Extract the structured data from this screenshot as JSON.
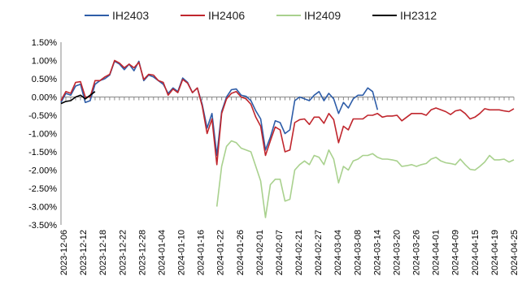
{
  "chart_data": {
    "type": "line",
    "title": "",
    "xlabel": "",
    "ylabel": "",
    "ylim": [
      -3.5,
      1.5
    ],
    "y_ticks": [
      1.5,
      1.0,
      0.5,
      0.0,
      -0.5,
      -1.0,
      -1.5,
      -2.0,
      -2.5,
      -3.0,
      -3.5
    ],
    "y_tick_labels": [
      "1.50%",
      "1.00%",
      "0.50%",
      "0.00%",
      "-0.50%",
      "-1.00%",
      "-1.50%",
      "-2.00%",
      "-2.50%",
      "-3.00%",
      "-3.50%"
    ],
    "x_tick_labels": [
      "2023-12-06",
      "2023-12-12",
      "2023-12-18",
      "2023-12-22",
      "2023-12-28",
      "2024-01-04",
      "2024-01-10",
      "2024-01-16",
      "2024-01-22",
      "2024-01-26",
      "2024-02-01",
      "2024-02-07",
      "2024-02-21",
      "2024-02-27",
      "2024-03-04",
      "2024-03-08",
      "2024-03-14",
      "2024-03-20",
      "2024-03-26",
      "2024-04-01",
      "2024-04-09",
      "2024-04-15",
      "2024-04-19",
      "2024-04-25"
    ],
    "legend_position": "top",
    "grid": false,
    "unit": "%",
    "series": [
      {
        "name": "IH2403",
        "color": "#2e5da8",
        "x": [
          "2023-12-06",
          "2023-12-07",
          "2023-12-08",
          "2023-12-11",
          "2023-12-12",
          "2023-12-13",
          "2023-12-14",
          "2023-12-15",
          "2023-12-18",
          "2023-12-19",
          "2023-12-20",
          "2023-12-21",
          "2023-12-22",
          "2023-12-25",
          "2023-12-26",
          "2023-12-27",
          "2023-12-28",
          "2023-12-29",
          "2024-01-02",
          "2024-01-03",
          "2024-01-04",
          "2024-01-05",
          "2024-01-08",
          "2024-01-09",
          "2024-01-10",
          "2024-01-11",
          "2024-01-12",
          "2024-01-15",
          "2024-01-16",
          "2024-01-17",
          "2024-01-18",
          "2024-01-19",
          "2024-01-22",
          "2024-01-23",
          "2024-01-24",
          "2024-01-25",
          "2024-01-26",
          "2024-01-29",
          "2024-01-30",
          "2024-01-31",
          "2024-02-01",
          "2024-02-02",
          "2024-02-05",
          "2024-02-06",
          "2024-02-07",
          "2024-02-08",
          "2024-02-19",
          "2024-02-20",
          "2024-02-21",
          "2024-02-22",
          "2024-02-23",
          "2024-02-26",
          "2024-02-27",
          "2024-02-28",
          "2024-02-29",
          "2024-03-01",
          "2024-03-04",
          "2024-03-05",
          "2024-03-06",
          "2024-03-07",
          "2024-03-08",
          "2024-03-11",
          "2024-03-12",
          "2024-03-13",
          "2024-03-14",
          "2024-03-15"
        ],
        "y": [
          -0.15,
          0.1,
          0.05,
          0.3,
          0.35,
          -0.15,
          -0.1,
          0.35,
          0.45,
          0.5,
          0.6,
          0.98,
          0.9,
          0.75,
          0.9,
          0.72,
          0.98,
          0.45,
          0.6,
          0.55,
          0.45,
          0.35,
          0.1,
          0.25,
          0.15,
          0.52,
          0.4,
          0.12,
          0.25,
          -0.2,
          -0.85,
          -0.45,
          -1.6,
          -0.4,
          0.0,
          0.2,
          0.22,
          0.05,
          0.02,
          -0.1,
          -0.38,
          -0.6,
          -1.45,
          -1.1,
          -0.65,
          -0.7,
          -1.0,
          -0.9,
          -0.1,
          0.0,
          -0.05,
          -0.1,
          0.05,
          0.15,
          -0.1,
          0.1,
          -0.05,
          -0.45,
          -0.15,
          -0.3,
          -0.05,
          0.05,
          0.05,
          0.25,
          0.15,
          -0.35
        ]
      },
      {
        "name": "IH2406",
        "color": "#c0262d",
        "x": [
          "2023-12-06",
          "2023-12-07",
          "2023-12-08",
          "2023-12-11",
          "2023-12-12",
          "2023-12-13",
          "2023-12-14",
          "2023-12-15",
          "2023-12-18",
          "2023-12-19",
          "2023-12-20",
          "2023-12-21",
          "2023-12-22",
          "2023-12-25",
          "2023-12-26",
          "2023-12-27",
          "2023-12-28",
          "2023-12-29",
          "2024-01-02",
          "2024-01-03",
          "2024-01-04",
          "2024-01-05",
          "2024-01-08",
          "2024-01-09",
          "2024-01-10",
          "2024-01-11",
          "2024-01-12",
          "2024-01-15",
          "2024-01-16",
          "2024-01-17",
          "2024-01-18",
          "2024-01-19",
          "2024-01-22",
          "2024-01-23",
          "2024-01-24",
          "2024-01-25",
          "2024-01-26",
          "2024-01-29",
          "2024-01-30",
          "2024-01-31",
          "2024-02-01",
          "2024-02-02",
          "2024-02-05",
          "2024-02-06",
          "2024-02-07",
          "2024-02-08",
          "2024-02-19",
          "2024-02-20",
          "2024-02-21",
          "2024-02-22",
          "2024-02-23",
          "2024-02-26",
          "2024-02-27",
          "2024-02-28",
          "2024-02-29",
          "2024-03-01",
          "2024-03-04",
          "2024-03-05",
          "2024-03-06",
          "2024-03-07",
          "2024-03-08",
          "2024-03-11",
          "2024-03-12",
          "2024-03-13",
          "2024-03-14",
          "2024-03-15",
          "2024-03-18",
          "2024-03-19",
          "2024-03-20",
          "2024-03-21",
          "2024-03-22",
          "2024-03-25",
          "2024-03-26",
          "2024-03-27",
          "2024-03-28",
          "2024-03-29",
          "2024-04-01",
          "2024-04-02",
          "2024-04-03",
          "2024-04-08",
          "2024-04-09",
          "2024-04-10",
          "2024-04-11",
          "2024-04-12",
          "2024-04-15",
          "2024-04-16",
          "2024-04-17",
          "2024-04-18",
          "2024-04-19",
          "2024-04-22",
          "2024-04-23",
          "2024-04-24",
          "2024-04-25",
          "2024-04-26"
        ],
        "y": [
          -0.1,
          0.15,
          0.1,
          0.4,
          0.42,
          0.0,
          0.0,
          0.45,
          0.45,
          0.55,
          0.62,
          1.0,
          0.93,
          0.8,
          0.9,
          0.8,
          0.95,
          0.48,
          0.62,
          0.6,
          0.45,
          0.4,
          0.05,
          0.22,
          0.12,
          0.48,
          0.38,
          0.12,
          0.25,
          -0.25,
          -1.0,
          -0.6,
          -1.85,
          -0.45,
          -0.05,
          0.1,
          0.15,
          0.0,
          -0.05,
          -0.2,
          -0.55,
          -0.8,
          -1.6,
          -1.2,
          -0.82,
          -0.9,
          -1.5,
          -1.45,
          -0.7,
          -0.62,
          -0.6,
          -0.75,
          -0.55,
          -0.55,
          -0.72,
          -0.45,
          -0.62,
          -1.25,
          -0.8,
          -0.9,
          -0.6,
          -0.6,
          -0.6,
          -0.5,
          -0.5,
          -0.45,
          -0.55,
          -0.52,
          -0.52,
          -0.5,
          -0.65,
          -0.55,
          -0.45,
          -0.45,
          -0.45,
          -0.5,
          -0.35,
          -0.3,
          -0.35,
          -0.4,
          -0.48,
          -0.38,
          -0.35,
          -0.45,
          -0.6,
          -0.55,
          -0.45,
          -0.32,
          -0.35,
          -0.35,
          -0.35,
          -0.38,
          -0.4,
          -0.32
        ]
      },
      {
        "name": "IH2409",
        "color": "#a9d18e",
        "x": [
          "2024-01-22",
          "2024-01-23",
          "2024-01-24",
          "2024-01-25",
          "2024-01-26",
          "2024-01-29",
          "2024-01-30",
          "2024-01-31",
          "2024-02-01",
          "2024-02-02",
          "2024-02-05",
          "2024-02-06",
          "2024-02-07",
          "2024-02-08",
          "2024-02-19",
          "2024-02-20",
          "2024-02-21",
          "2024-02-22",
          "2024-02-23",
          "2024-02-26",
          "2024-02-27",
          "2024-02-28",
          "2024-02-29",
          "2024-03-01",
          "2024-03-04",
          "2024-03-05",
          "2024-03-06",
          "2024-03-07",
          "2024-03-08",
          "2024-03-11",
          "2024-03-12",
          "2024-03-13",
          "2024-03-14",
          "2024-03-15",
          "2024-03-18",
          "2024-03-19",
          "2024-03-20",
          "2024-03-21",
          "2024-03-22",
          "2024-03-25",
          "2024-03-26",
          "2024-03-27",
          "2024-03-28",
          "2024-03-29",
          "2024-04-01",
          "2024-04-02",
          "2024-04-03",
          "2024-04-08",
          "2024-04-09",
          "2024-04-10",
          "2024-04-11",
          "2024-04-12",
          "2024-04-15",
          "2024-04-16",
          "2024-04-17",
          "2024-04-18",
          "2024-04-19",
          "2024-04-22",
          "2024-04-23",
          "2024-04-24",
          "2024-04-25",
          "2024-04-26"
        ],
        "y": [
          -3.0,
          -1.9,
          -1.35,
          -1.2,
          -1.25,
          -1.4,
          -1.45,
          -1.5,
          -1.9,
          -2.3,
          -3.3,
          -2.4,
          -2.25,
          -2.25,
          -2.85,
          -2.8,
          -2.0,
          -1.85,
          -1.75,
          -1.85,
          -1.6,
          -1.65,
          -1.85,
          -1.45,
          -1.7,
          -2.35,
          -1.9,
          -2.0,
          -1.75,
          -1.7,
          -1.6,
          -1.6,
          -1.55,
          -1.65,
          -1.7,
          -1.7,
          -1.72,
          -1.75,
          -1.9,
          -1.88,
          -1.85,
          -1.9,
          -1.85,
          -1.82,
          -1.7,
          -1.65,
          -1.75,
          -1.8,
          -1.82,
          -1.85,
          -1.7,
          -1.85,
          -1.98,
          -2.0,
          -1.9,
          -1.78,
          -1.6,
          -1.72,
          -1.72,
          -1.7,
          -1.78,
          -1.72
        ]
      },
      {
        "name": "IH2312",
        "color": "#000000",
        "x": [
          "2023-12-06",
          "2023-12-07",
          "2023-12-08",
          "2023-12-11",
          "2023-12-12",
          "2023-12-13",
          "2023-12-14",
          "2023-12-15"
        ],
        "y": [
          -0.18,
          -0.12,
          -0.1,
          0.0,
          0.05,
          -0.05,
          0.05,
          0.15
        ]
      }
    ]
  }
}
